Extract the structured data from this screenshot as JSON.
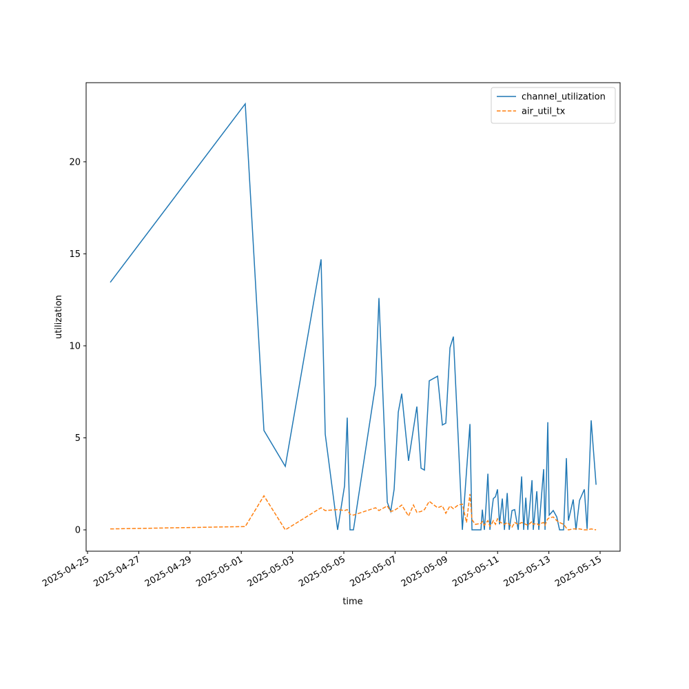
{
  "chart_data": {
    "type": "line",
    "x_label": "time",
    "y_label": "utilization",
    "x": [
      "2025-04-25T21:18",
      "2025-05-01T03:42",
      "2025-05-01T21:12",
      "2025-05-02T17:12",
      "2025-05-04T02:42",
      "2025-05-04T06:36",
      "2025-05-04T18:12",
      "2025-05-05T00:42",
      "2025-05-05T03:12",
      "2025-05-05T05:48",
      "2025-05-05T09:00",
      "2025-05-06T05:42",
      "2025-05-06T08:54",
      "2025-05-06T16:42",
      "2025-05-06T19:54",
      "2025-05-06T23:06",
      "2025-05-07T03:00",
      "2025-05-07T06:12",
      "2025-05-07T12:36",
      "2025-05-07T17:12",
      "2025-05-07T20:24",
      "2025-05-08T00:18",
      "2025-05-08T03:30",
      "2025-05-08T08:00",
      "2025-05-08T15:48",
      "2025-05-08T20:18",
      "2025-05-08T23:30",
      "2025-05-09T03:24",
      "2025-05-09T06:36",
      "2025-05-09T11:06",
      "2025-05-09T15:00",
      "2025-05-09T18:54",
      "2025-05-09T22:06",
      "2025-05-10T00:00",
      "2025-05-10T03:12",
      "2025-05-10T08:24",
      "2025-05-10T09:42",
      "2025-05-10T11:36",
      "2025-05-10T12:54",
      "2025-05-10T14:54",
      "2025-05-10T16:48",
      "2025-05-10T18:42",
      "2025-05-10T20:00",
      "2025-05-10T22:00",
      "2025-05-10T23:54",
      "2025-05-11T01:48",
      "2025-05-11T04:24",
      "2025-05-11T06:24",
      "2025-05-11T09:00",
      "2025-05-11T10:54",
      "2025-05-11T13:30",
      "2025-05-11T16:00",
      "2025-05-11T19:18",
      "2025-05-11T22:30",
      "2025-05-12T00:24",
      "2025-05-12T02:24",
      "2025-05-12T04:18",
      "2025-05-12T08:12",
      "2025-05-12T09:24",
      "2025-05-12T12:42",
      "2025-05-12T14:36",
      "2025-05-12T16:30",
      "2025-05-12T19:06",
      "2025-05-12T20:24",
      "2025-05-12T21:42",
      "2025-05-12T23:00",
      "2025-05-13T00:18",
      "2025-05-13T04:06",
      "2025-05-13T07:24",
      "2025-05-13T10:00",
      "2025-05-13T13:48",
      "2025-05-13T15:06",
      "2025-05-13T16:24",
      "2025-05-13T18:18",
      "2025-05-13T22:48",
      "2025-05-14T01:24",
      "2025-05-14T04:42",
      "2025-05-14T09:12",
      "2025-05-14T11:48",
      "2025-05-14T15:36",
      "2025-05-14T20:12"
    ],
    "series": [
      {
        "name": "channel_utilization",
        "color": "#1f77b4",
        "dash": "solid",
        "values": [
          13.45,
          23.15,
          5.4,
          3.45,
          14.7,
          5.2,
          0.0,
          2.4,
          6.1,
          0.0,
          0.0,
          7.9,
          12.6,
          1.5,
          1.0,
          2.2,
          6.4,
          7.4,
          3.75,
          5.5,
          6.7,
          3.35,
          3.25,
          8.1,
          8.35,
          5.7,
          5.8,
          9.9,
          10.5,
          5.0,
          0.0,
          3.2,
          5.75,
          0.0,
          0.0,
          0.0,
          1.1,
          0.0,
          1.05,
          3.05,
          0.0,
          1.1,
          1.7,
          1.8,
          2.2,
          0.3,
          1.7,
          0.0,
          2.0,
          0.0,
          1.05,
          1.1,
          0.0,
          2.9,
          0.0,
          1.75,
          0.0,
          2.7,
          0.0,
          2.1,
          0.0,
          1.4,
          3.3,
          0.0,
          2.75,
          5.85,
          0.8,
          1.05,
          0.7,
          0.0,
          0.0,
          1.8,
          3.9,
          0.5,
          1.65,
          0.0,
          1.6,
          2.2,
          0.05,
          5.95,
          2.45
        ]
      },
      {
        "name": "air_util_tx",
        "color": "#ff7f0e",
        "dash": "dashed",
        "values": [
          0.05,
          0.18,
          1.85,
          0.0,
          1.2,
          1.05,
          1.1,
          1.05,
          1.1,
          0.85,
          0.8,
          1.2,
          1.05,
          1.3,
          1.0,
          1.05,
          1.2,
          1.35,
          0.75,
          1.35,
          0.95,
          1.0,
          1.1,
          1.55,
          1.2,
          1.3,
          0.9,
          1.3,
          1.15,
          1.35,
          1.4,
          0.4,
          1.95,
          0.55,
          0.3,
          0.35,
          0.45,
          0.25,
          0.35,
          0.5,
          0.2,
          0.35,
          0.5,
          0.3,
          0.6,
          0.45,
          0.35,
          0.3,
          0.4,
          0.3,
          0.15,
          0.4,
          0.3,
          0.4,
          0.35,
          0.3,
          0.25,
          0.45,
          0.3,
          0.35,
          0.25,
          0.35,
          0.4,
          0.25,
          0.45,
          0.6,
          0.65,
          0.7,
          0.5,
          0.4,
          0.3,
          0.2,
          0.1,
          0.0,
          0.05,
          0.05,
          0.05,
          0.0,
          0.0,
          0.05,
          0.0
        ]
      }
    ],
    "xlim": [
      "2025-04-24T22:42",
      "2025-05-15T18:42"
    ],
    "xticks": [
      "2025-04-25",
      "2025-04-27",
      "2025-04-29",
      "2025-05-01",
      "2025-05-03",
      "2025-05-05",
      "2025-05-07",
      "2025-05-09",
      "2025-05-11",
      "2025-05-13",
      "2025-05-15"
    ],
    "ylim": [
      -1.16,
      24.3
    ],
    "yticks": [
      0,
      5,
      10,
      15,
      20
    ],
    "legend": "upper right"
  }
}
